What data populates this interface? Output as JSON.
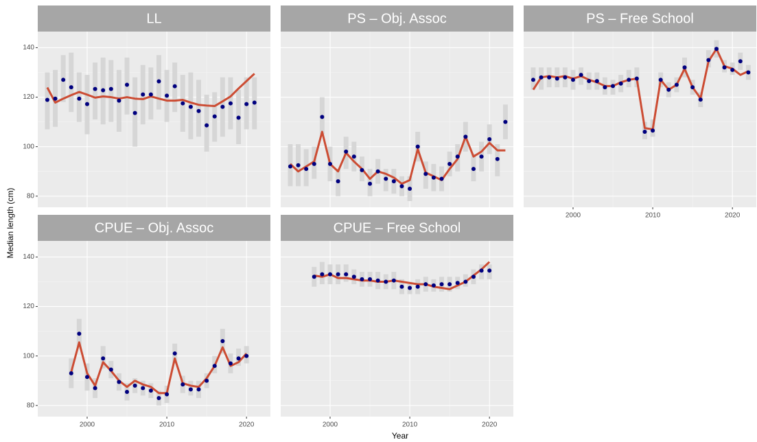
{
  "xlabel": "Year",
  "ylabel": "Median length (cm)",
  "colors": {
    "point": "#00007f",
    "line": "#cc4c33",
    "box": "#d6d6d6",
    "panel": "#ebebeb",
    "strip": "#a6a6a6"
  },
  "chart_data": [
    {
      "type": "line",
      "title": "LL",
      "x": [
        1995,
        1996,
        1997,
        1998,
        1999,
        2000,
        2001,
        2002,
        2003,
        2004,
        2005,
        2006,
        2007,
        2008,
        2009,
        2010,
        2011,
        2012,
        2013,
        2014,
        2015,
        2016,
        2017,
        2018,
        2019,
        2020,
        2021
      ],
      "points": [
        118.9,
        119.4,
        127,
        124,
        119.4,
        117.2,
        123.3,
        122.8,
        123.3,
        118.6,
        125,
        113.6,
        121.1,
        121.1,
        126.4,
        120.6,
        124.4,
        117.5,
        116.1,
        114.4,
        108.6,
        112.2,
        116.1,
        117.5,
        111.7,
        117.2,
        117.8
      ],
      "fit": [
        123.9,
        117.8,
        119.4,
        120.8,
        122.1,
        121,
        119.8,
        120.3,
        120,
        119.4,
        120,
        119.4,
        119.2,
        120.3,
        119.4,
        118.6,
        118.6,
        118.9,
        117.8,
        116.9,
        116.6,
        116.4,
        118.3,
        120.3,
        123.5,
        126.5,
        129.5
      ],
      "lower": [
        107,
        108,
        118,
        114,
        110,
        105,
        111,
        109,
        110,
        106,
        113,
        100,
        109,
        111,
        115,
        110,
        114,
        106,
        103,
        104,
        98,
        102,
        104,
        107,
        101,
        107,
        107
      ],
      "upper": [
        130,
        131,
        137,
        138,
        130,
        129,
        134,
        136,
        135,
        131,
        136,
        128,
        133,
        132,
        137,
        131,
        134,
        129,
        130,
        127,
        121,
        122,
        128,
        128,
        123,
        128,
        128
      ],
      "xlim": [
        1993.8,
        2023.0
      ],
      "ylim": [
        75.5,
        146.5
      ],
      "xticks": [
        2000,
        2010,
        2020
      ],
      "yticks": [
        80,
        100,
        120,
        140
      ],
      "grid": true
    },
    {
      "type": "line",
      "title": "PS – Obj. Assoc",
      "x": [
        1995,
        1996,
        1997,
        1998,
        1999,
        2000,
        2001,
        2002,
        2003,
        2004,
        2005,
        2006,
        2007,
        2008,
        2009,
        2010,
        2011,
        2012,
        2013,
        2014,
        2015,
        2016,
        2017,
        2018,
        2019,
        2020,
        2021,
        2022
      ],
      "points": [
        92,
        92.5,
        91,
        93,
        112,
        93,
        86,
        98,
        96,
        90.5,
        85,
        90,
        87,
        86,
        84,
        83,
        100,
        89,
        87.5,
        87,
        93,
        96,
        104,
        91,
        96,
        103,
        95,
        110
      ],
      "fit": [
        93,
        90,
        92,
        94,
        106,
        93,
        90,
        97.5,
        94,
        91,
        87,
        90,
        89,
        87.5,
        85,
        86.5,
        99,
        89.5,
        88,
        86.5,
        91,
        95,
        104,
        96,
        98,
        101.5,
        98.5,
        98.5
      ],
      "lower": [
        84,
        84,
        84,
        87,
        105,
        86,
        80,
        91,
        90,
        86,
        80,
        85,
        82,
        81,
        80,
        78,
        94,
        83,
        82,
        82,
        88,
        90,
        98,
        86,
        90,
        97,
        88,
        103
      ],
      "upper": [
        101,
        101,
        99,
        100,
        120,
        100,
        91,
        104,
        102,
        96,
        91,
        95,
        91,
        91,
        88,
        88,
        106,
        94,
        93,
        92,
        98,
        101,
        110,
        97,
        102,
        109,
        101,
        117
      ],
      "xlim": [
        1993.8,
        2023.0
      ],
      "ylim": [
        75.5,
        146.5
      ],
      "xticks": [
        2000,
        2010,
        2020
      ],
      "yticks": [
        80,
        100,
        120,
        140
      ],
      "grid": true
    },
    {
      "type": "line",
      "title": "PS – Free School",
      "x": [
        1995,
        1996,
        1997,
        1998,
        1999,
        2000,
        2001,
        2002,
        2003,
        2004,
        2005,
        2006,
        2007,
        2008,
        2009,
        2010,
        2011,
        2012,
        2013,
        2014,
        2015,
        2016,
        2017,
        2018,
        2019,
        2020,
        2021,
        2022
      ],
      "points": [
        127,
        128,
        128,
        127.5,
        128,
        127,
        129,
        126.5,
        126.5,
        124,
        124.5,
        125.5,
        127,
        127.5,
        106,
        106.5,
        127,
        123,
        125,
        132,
        124,
        119,
        135,
        139.5,
        132,
        131,
        134.5,
        130
      ],
      "fit": [
        123,
        128,
        128.5,
        128,
        128.5,
        127.5,
        128.5,
        127,
        126,
        124.5,
        124.5,
        126,
        127,
        127.5,
        107.5,
        107,
        127,
        123,
        125,
        131.5,
        124,
        119.5,
        134.5,
        139.5,
        132.5,
        131.5,
        129,
        130.5
      ],
      "lower": [
        123,
        123,
        124,
        124,
        124,
        123,
        125,
        123,
        123,
        121,
        121,
        122,
        124,
        124,
        103,
        104,
        124,
        120,
        122,
        128,
        121,
        116,
        132,
        136,
        130,
        129,
        131,
        127
      ],
      "upper": [
        132,
        132,
        132,
        132,
        132,
        131,
        132,
        130,
        130,
        128,
        127,
        129,
        131,
        132,
        110,
        111,
        130,
        126,
        128,
        136,
        127,
        122,
        139,
        143,
        135,
        134,
        138,
        133
      ],
      "xlim": [
        1993.8,
        2023.0
      ],
      "ylim": [
        75.5,
        146.5
      ],
      "xticks": [
        2000,
        2010,
        2020
      ],
      "yticks": [
        80,
        100,
        120,
        140
      ],
      "grid": true
    },
    {
      "type": "line",
      "title": "CPUE – Obj. Assoc",
      "x": [
        1998,
        1999,
        2000,
        2001,
        2002,
        2003,
        2004,
        2005,
        2006,
        2007,
        2008,
        2009,
        2010,
        2011,
        2012,
        2013,
        2014,
        2015,
        2016,
        2017,
        2018,
        2019,
        2020
      ],
      "points": [
        93,
        109,
        91.5,
        87,
        99,
        94.5,
        89.5,
        85.5,
        88,
        87,
        86,
        83,
        84.5,
        101,
        88.5,
        86.5,
        86.5,
        90,
        96,
        106,
        97,
        99,
        100
      ],
      "fit": [
        93.5,
        105.5,
        93,
        88,
        97.5,
        94,
        90,
        87.5,
        90,
        88.5,
        87.5,
        85,
        85,
        99,
        89,
        88,
        87.5,
        91,
        96,
        103.5,
        96,
        97.5,
        101
      ],
      "lower": [
        87,
        103,
        86,
        83,
        95,
        91,
        86,
        82,
        85,
        84,
        83,
        80,
        81,
        97,
        85,
        84,
        83,
        87,
        93,
        101,
        93,
        96,
        97
      ],
      "upper": [
        99,
        115,
        97,
        91,
        104,
        98,
        93,
        89,
        91,
        90,
        89,
        86,
        88,
        105,
        92,
        90,
        90,
        93,
        100,
        111,
        101,
        103,
        104
      ],
      "xlim": [
        1993.8,
        2023.0
      ],
      "ylim": [
        75.5,
        146.5
      ],
      "xticks": [
        2000,
        2010,
        2020
      ],
      "yticks": [
        80,
        100,
        120,
        140
      ],
      "grid": true
    },
    {
      "type": "line",
      "title": "CPUE – Free School",
      "x": [
        1998,
        1999,
        2000,
        2001,
        2002,
        2003,
        2004,
        2005,
        2006,
        2007,
        2008,
        2009,
        2010,
        2011,
        2012,
        2013,
        2014,
        2015,
        2016,
        2017,
        2018,
        2019,
        2020
      ],
      "points": [
        132,
        133,
        133,
        133,
        133,
        132,
        131,
        131,
        130.5,
        130,
        130.5,
        128,
        127.5,
        128,
        129,
        128.5,
        129,
        129,
        129.5,
        130,
        132,
        134.5,
        134.5
      ],
      "fit": [
        132.5,
        132,
        133,
        131.5,
        131.5,
        131,
        130.5,
        130.5,
        130,
        130,
        130.5,
        130,
        129.5,
        129,
        129,
        128,
        127.5,
        127,
        128.5,
        130,
        132.5,
        135,
        138
      ],
      "lower": [
        128,
        129,
        129,
        129,
        130,
        129,
        128,
        128,
        127,
        127,
        127,
        125,
        125,
        125,
        126,
        126,
        126,
        126,
        127,
        128,
        129,
        131,
        131
      ],
      "upper": [
        136,
        138,
        137,
        137,
        137,
        135,
        134,
        134,
        134,
        133,
        134,
        131,
        130,
        131,
        132,
        131,
        132,
        132,
        132,
        133,
        135,
        137,
        137
      ],
      "xlim": [
        1993.8,
        2023.0
      ],
      "ylim": [
        75.5,
        146.5
      ],
      "xticks": [
        2000,
        2010,
        2020
      ],
      "yticks": [
        80,
        100,
        120,
        140
      ],
      "grid": true
    }
  ]
}
